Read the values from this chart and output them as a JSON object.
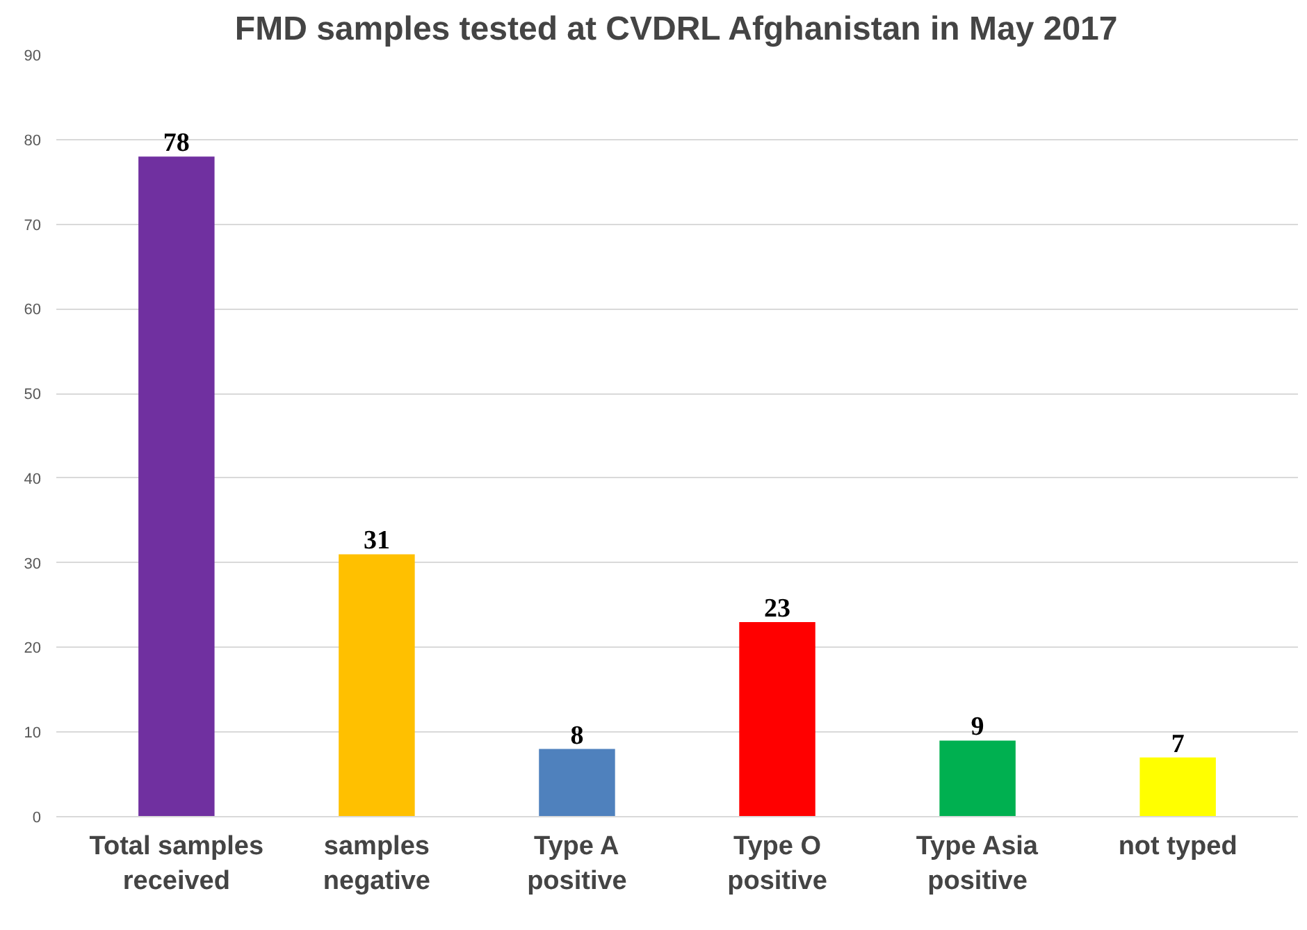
{
  "chart_data": {
    "type": "bar",
    "title": "FMD samples tested at CVDRL Afghanistan in May 2017",
    "categories": [
      "Total samples received",
      "samples negative",
      "Type A positive",
      "Type O positive",
      "Type Asia positive",
      "not typed"
    ],
    "values": [
      78,
      31,
      8,
      23,
      9,
      7
    ],
    "colors": [
      "#7030a0",
      "#ffc000",
      "#4f81bd",
      "#ff0000",
      "#00b050",
      "#ffff00"
    ],
    "ylim": [
      0,
      90
    ],
    "yticks": [
      0,
      10,
      20,
      30,
      40,
      50,
      60,
      70,
      80,
      90
    ],
    "grid": "y",
    "data_labels": true
  }
}
